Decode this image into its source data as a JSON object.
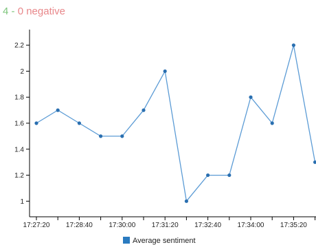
{
  "header": {
    "positive_count": "4",
    "separator": " - ",
    "negative_label": "0 negative"
  },
  "chart_data": {
    "type": "line",
    "title": "",
    "xlabel": "",
    "ylabel": "",
    "x": [
      "17:27:20",
      "17:28:00",
      "17:28:40",
      "17:29:20",
      "17:30:00",
      "17:30:40",
      "17:31:20",
      "17:32:00",
      "17:32:40",
      "17:33:20",
      "17:34:00",
      "17:34:40",
      "17:35:20",
      "17:36:00"
    ],
    "series": [
      {
        "name": "Average sentiment",
        "values": [
          1.6,
          1.7,
          1.6,
          1.5,
          1.5,
          1.7,
          2.0,
          1.0,
          1.2,
          1.2,
          1.8,
          1.6,
          2.2,
          1.3
        ]
      }
    ],
    "x_tick_labels": [
      "17:27:20",
      "17:28:40",
      "17:30:00",
      "17:31:20",
      "17:32:40",
      "17:34:00",
      "17:35:20"
    ],
    "y_ticks": [
      1,
      1.2,
      1.4,
      1.6,
      1.8,
      2,
      2.2
    ],
    "y_tick_labels": [
      "1",
      "1.2",
      "1.4",
      "1.6",
      "1.8",
      "2",
      "2.2"
    ],
    "ylim": [
      0.88,
      2.32
    ],
    "grid": false,
    "legend_position": "bottom-center",
    "colors": {
      "line": "#5b9bd5",
      "point": "#2a6fb0",
      "legend_swatch": "#2b7bc0"
    }
  }
}
